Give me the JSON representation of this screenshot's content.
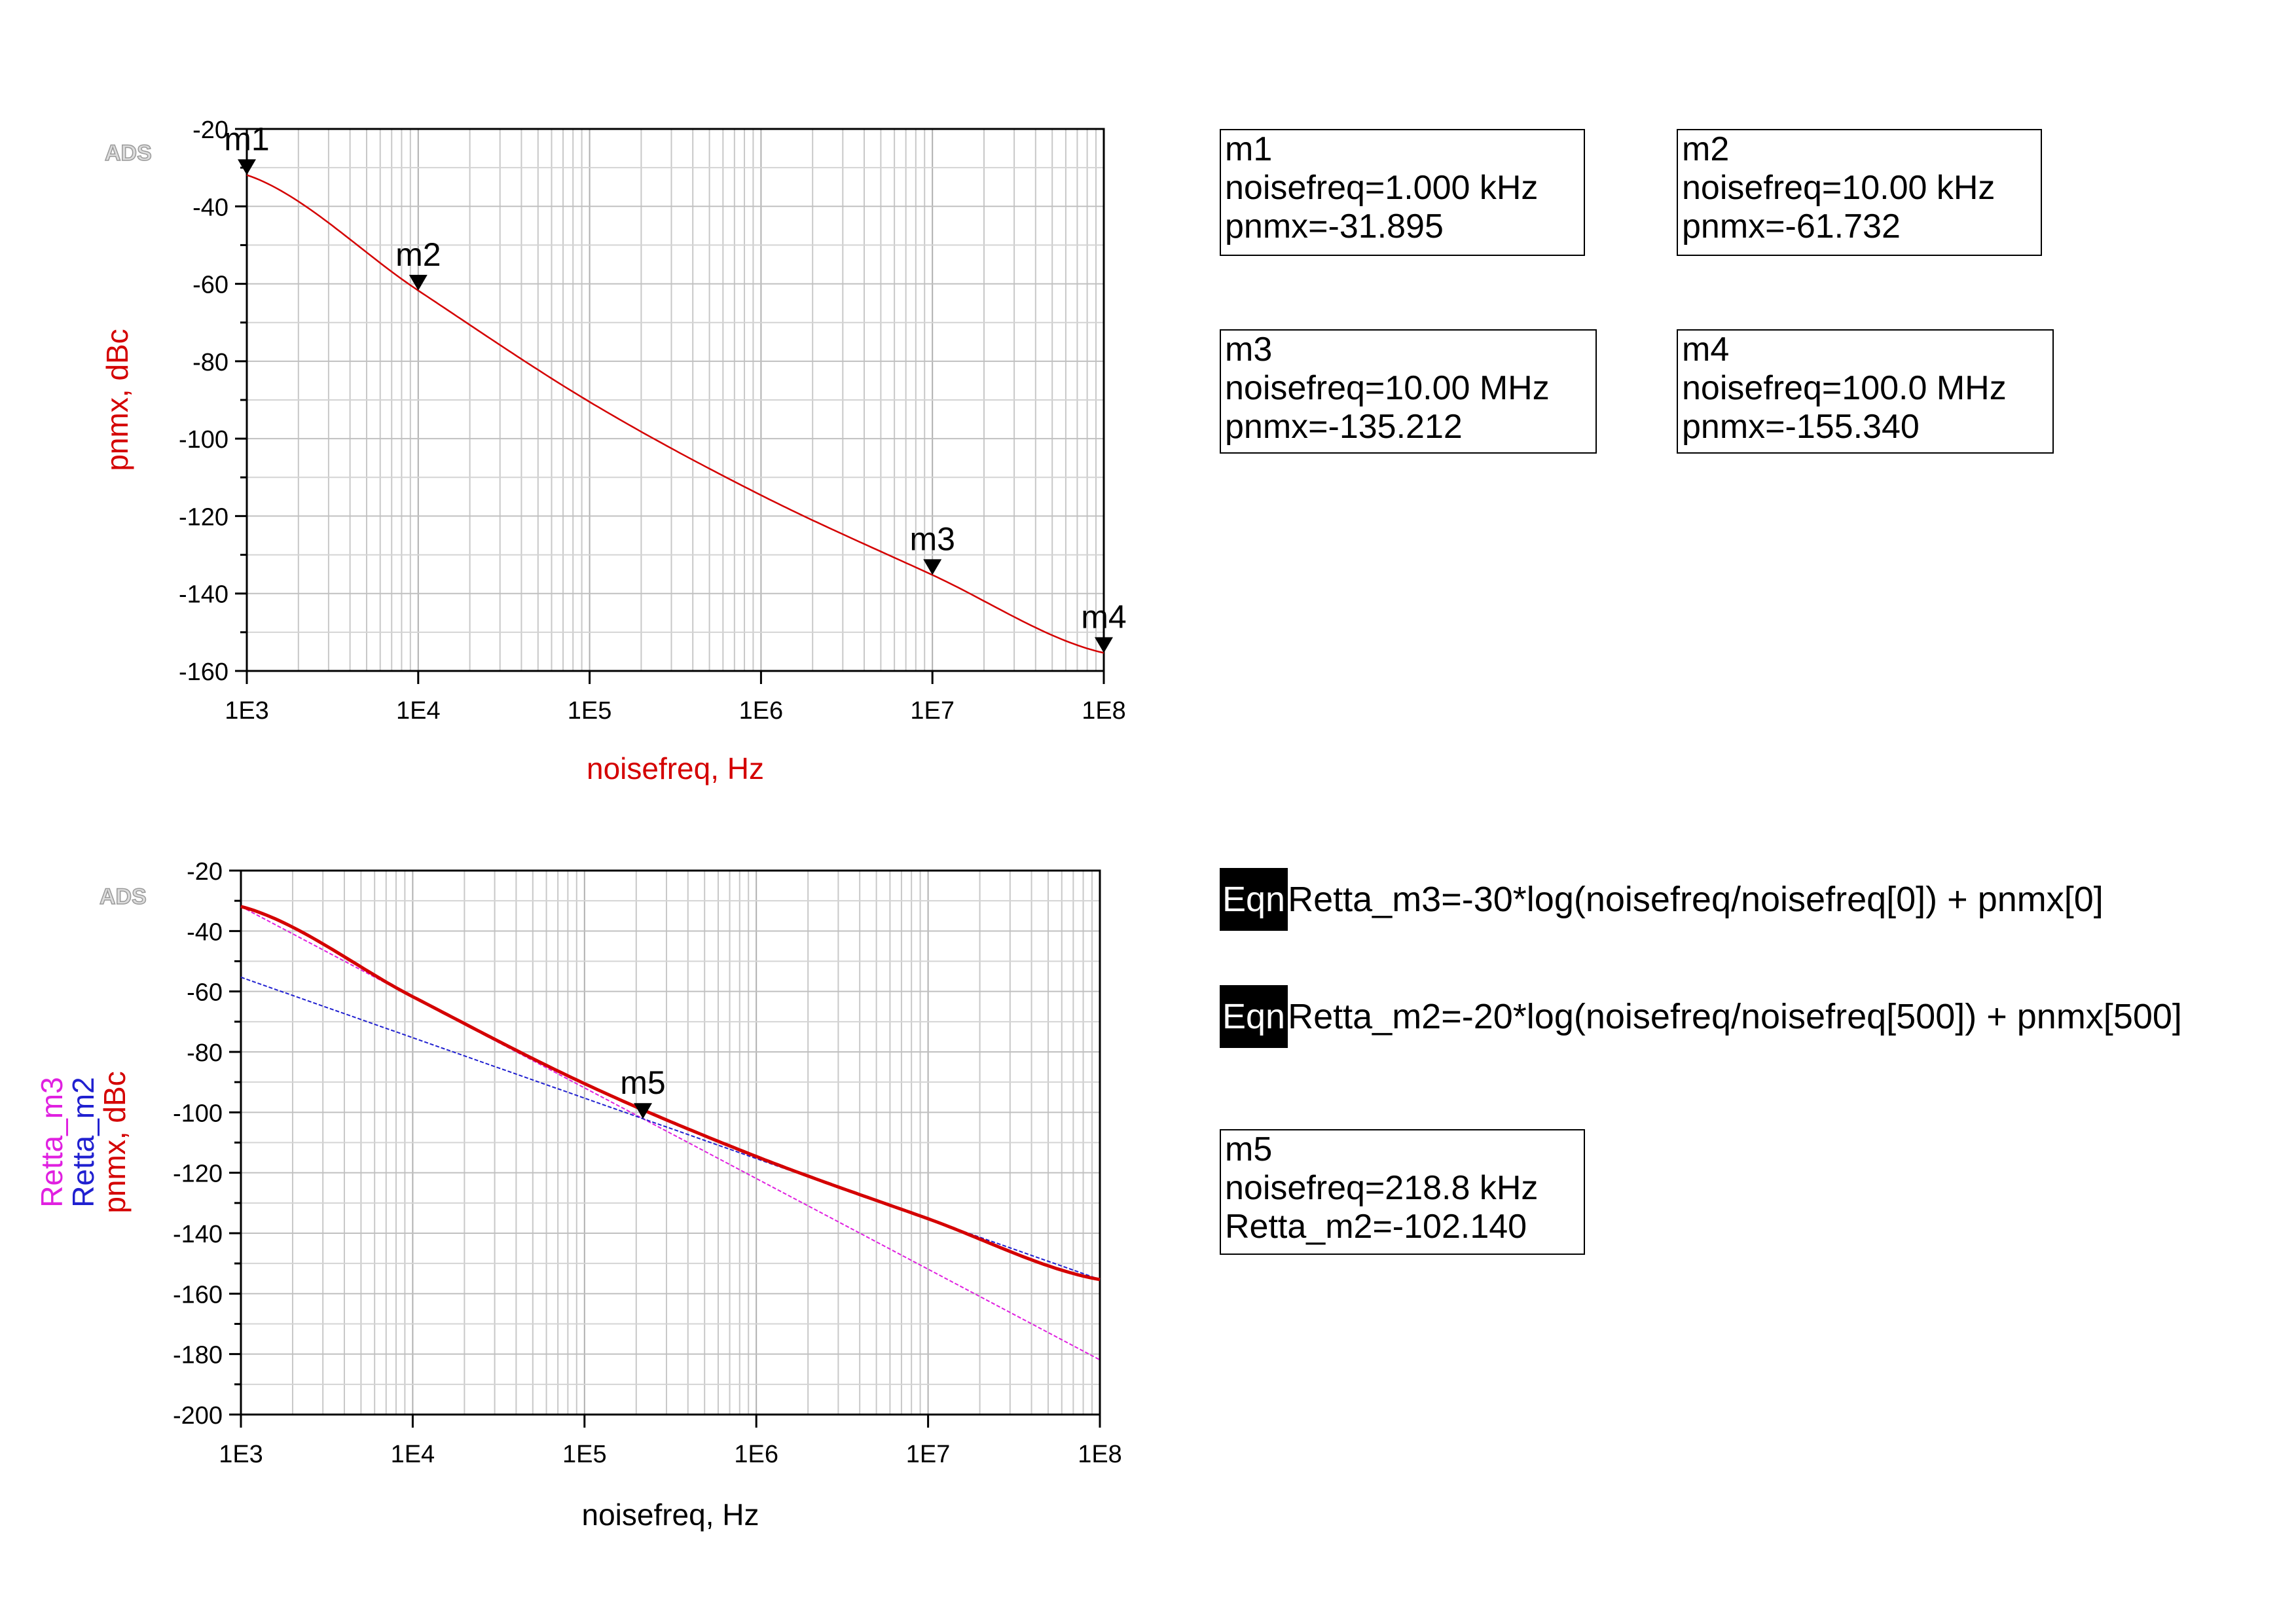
{
  "chart_data": [
    {
      "type": "line",
      "watermark": "ADS",
      "xlabel": "noisefreq, Hz",
      "ylabel": "pnmx, dBc",
      "x_scale": "log",
      "xlim": [
        1000,
        100000000
      ],
      "ylim": [
        -160,
        -20
      ],
      "x_ticks": [
        "1E3",
        "1E4",
        "1E5",
        "1E6",
        "1E7",
        "1E8"
      ],
      "y_ticks": [
        "-20",
        "-40",
        "-60",
        "-80",
        "-100",
        "-120",
        "-140",
        "-160"
      ],
      "grid": true,
      "series": [
        {
          "name": "pnmx",
          "color": "#d40000",
          "x": [
            1000,
            10000,
            100000,
            1000000,
            10000000,
            100000000
          ],
          "values": [
            -31.895,
            -61.732,
            -90.5,
            -114.6,
            -135.212,
            -155.34
          ]
        }
      ],
      "markers": [
        {
          "label": "m1",
          "x": 1000,
          "y": -31.895
        },
        {
          "label": "m2",
          "x": 10000,
          "y": -61.732
        },
        {
          "label": "m3",
          "x": 10000000,
          "y": -135.212
        },
        {
          "label": "m4",
          "x": 100000000,
          "y": -155.34
        }
      ]
    },
    {
      "type": "line",
      "watermark": "ADS",
      "xlabel": "noisefreq, Hz",
      "ylabel_parts": [
        {
          "text": "Retta_m3",
          "color": "#e020e0"
        },
        {
          "text": "Retta_m2",
          "color": "#2020d0"
        },
        {
          "text": "pnmx, dBc",
          "color": "#d40000"
        }
      ],
      "x_scale": "log",
      "xlim": [
        1000,
        100000000
      ],
      "ylim": [
        -200,
        -20
      ],
      "x_ticks": [
        "1E3",
        "1E4",
        "1E5",
        "1E6",
        "1E7",
        "1E8"
      ],
      "y_ticks": [
        "-20",
        "-40",
        "-60",
        "-80",
        "-100",
        "-120",
        "-140",
        "-160",
        "-180",
        "-200"
      ],
      "grid": true,
      "series": [
        {
          "name": "Retta_m3",
          "color": "#e020e0",
          "x": [
            1000,
            100000000
          ],
          "values": [
            -31.895,
            -181.9
          ]
        },
        {
          "name": "Retta_m2",
          "color": "#2020d0",
          "x": [
            1000,
            100000000
          ],
          "values": [
            -55.3,
            -155.3
          ]
        },
        {
          "name": "pnmx",
          "color": "#d40000",
          "x": [
            1000,
            10000,
            100000,
            1000000,
            10000000,
            100000000
          ],
          "values": [
            -31.895,
            -61.732,
            -90.5,
            -114.6,
            -135.212,
            -155.34
          ]
        }
      ],
      "markers": [
        {
          "label": "m5",
          "x": 218800,
          "y": -102.14
        }
      ]
    }
  ],
  "marker_readouts": {
    "m1": {
      "name": "m1",
      "line1": "noisefreq=1.000 kHz",
      "line2": "pnmx=-31.895"
    },
    "m2": {
      "name": "m2",
      "line1": "noisefreq=10.00 kHz",
      "line2": "pnmx=-61.732"
    },
    "m3": {
      "name": "m3",
      "line1": "noisefreq=10.00 MHz",
      "line2": "pnmx=-135.212"
    },
    "m4": {
      "name": "m4",
      "line1": "noisefreq=100.0 MHz",
      "line2": "pnmx=-155.340"
    },
    "m5": {
      "name": "m5",
      "line1": "noisefreq=218.8 kHz",
      "line2": "Retta_m2=-102.140"
    }
  },
  "equations": [
    {
      "badge": "Eqn",
      "text": "Retta_m3=-30*log(noisefreq/noisefreq[0]) + pnmx[0]"
    },
    {
      "badge": "Eqn",
      "text": "Retta_m2=-20*log(noisefreq/noisefreq[500]) + pnmx[500]"
    }
  ]
}
